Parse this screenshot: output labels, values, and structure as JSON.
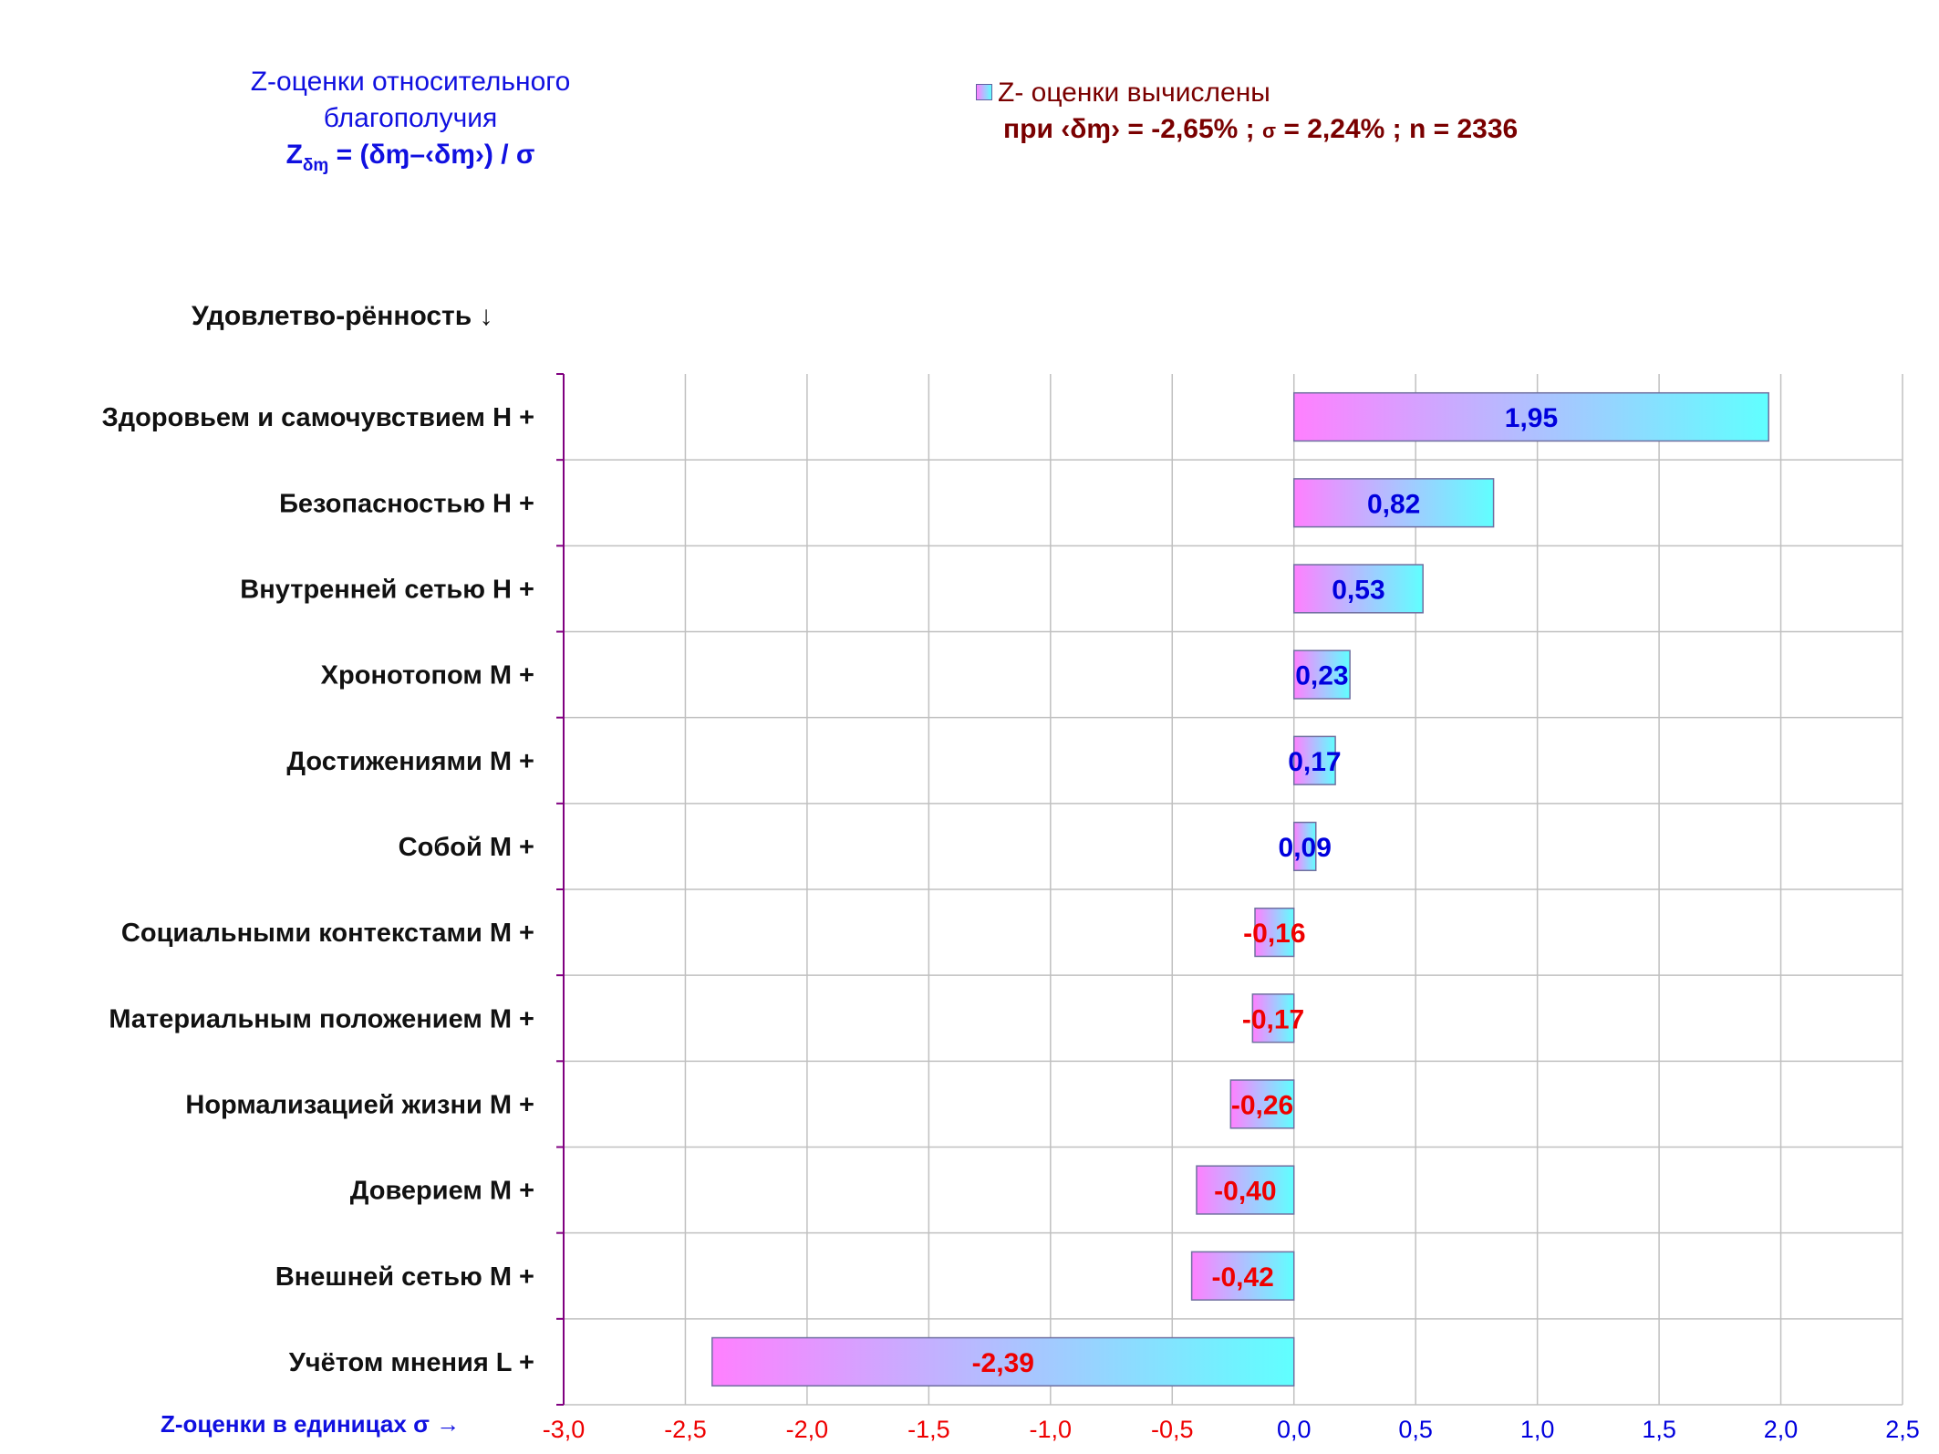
{
  "header": {
    "title_line1": "Z-оценки  относительного",
    "title_line2": "благополучия",
    "formula_z": "Z",
    "formula_sub": "δɱ",
    "formula_rest": " = (δɱ–‹δɱ›)  / σ"
  },
  "legend": {
    "line1": "Z- оценки вычислены",
    "line2_a": "при ‹δɱ›",
    "line2_b": " = -2,65% ; ",
    "line2_sigma": "σ",
    "line2_c": " = 2,24% ; n = 2336"
  },
  "category_header": "Удовлетво-рённость ↓",
  "x_axis_title": "Z-оценки в единицах σ →",
  "colors": {
    "positive_label": "#0000dd",
    "negative_label": "#ee0000",
    "bar_gradient_start": "#ff80ff",
    "bar_gradient_end": "#60ffff",
    "bar_border": "#7070a0",
    "grid": "#c0c0c0",
    "axis": "#800080"
  },
  "chart_data": {
    "type": "bar",
    "orientation": "horizontal",
    "categories": [
      "Здоровьем и самочувствием  H +",
      "Безопасностью  H +",
      "Внутренней сетью  H +",
      "Хронотопом  M +",
      "Достижениями  M +",
      "Собой  M +",
      "Социальными контекстами  M +",
      "Материальным положением  M +",
      "Нормализацией жизни  M +",
      "Доверием  M +",
      "Внешней сетью  M +",
      "Учётом мнения  L +"
    ],
    "values": [
      1.95,
      0.82,
      0.53,
      0.23,
      0.17,
      0.09,
      -0.16,
      -0.17,
      -0.26,
      -0.4,
      -0.42,
      -2.39
    ],
    "data_labels": [
      "1,95",
      "0,82",
      "0,53",
      "0,23",
      "0,17",
      "0,09",
      "-0,16",
      "-0,17",
      "-0,26",
      "-0,40",
      "-0,42",
      "-2,39"
    ],
    "xlim": [
      -3.0,
      2.5
    ],
    "x_ticks": [
      -3.0,
      -2.5,
      -2.0,
      -1.5,
      -1.0,
      -0.5,
      0.0,
      0.5,
      1.0,
      1.5,
      2.0,
      2.5
    ],
    "x_tick_labels": [
      "-3,0",
      "-2,5",
      "-2,0",
      "-1,5",
      "-1,0",
      "-0,5",
      "0,0",
      "0,5",
      "1,0",
      "1,5",
      "2,0",
      "2,5"
    ],
    "grid": true
  }
}
